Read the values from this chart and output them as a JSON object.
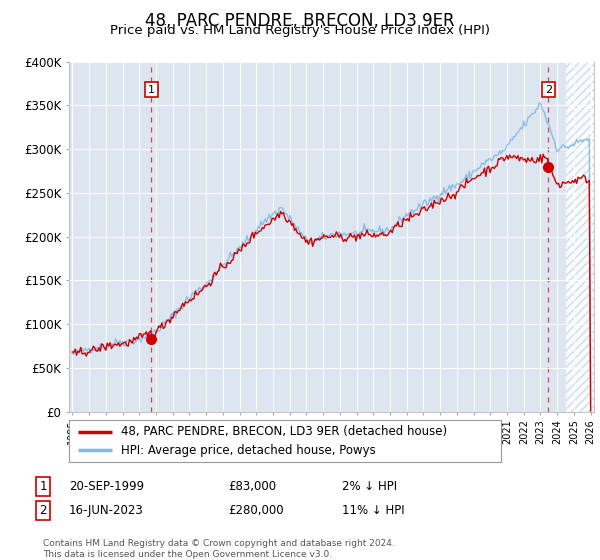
{
  "title": "48, PARC PENDRE, BRECON, LD3 9ER",
  "subtitle": "Price paid vs. HM Land Registry's House Price Index (HPI)",
  "ylim": [
    0,
    400000
  ],
  "yticks": [
    0,
    50000,
    100000,
    150000,
    200000,
    250000,
    300000,
    350000,
    400000
  ],
  "ytick_labels": [
    "£0",
    "£50K",
    "£100K",
    "£150K",
    "£200K",
    "£250K",
    "£300K",
    "£350K",
    "£400K"
  ],
  "background_color": "#ffffff",
  "plot_bg_color": "#dde6f0",
  "grid_color": "#ffffff",
  "title_fontsize": 12,
  "subtitle_fontsize": 9.5,
  "transactions": [
    {
      "date_num": 1999.72,
      "price": 83000,
      "label": "1"
    },
    {
      "date_num": 2023.46,
      "price": 280000,
      "label": "2"
    }
  ],
  "vline_color": "#cc0000",
  "vline_style": "--",
  "marker_color": "#cc0000",
  "legend_entries": [
    {
      "label": "48, PARC PENDRE, BRECON, LD3 9ER (detached house)",
      "color": "#cc0000",
      "lw": 2
    },
    {
      "label": "HPI: Average price, detached house, Powys",
      "color": "#80b8e8",
      "lw": 2
    }
  ],
  "annotation_rows": [
    {
      "label": "1",
      "date": "20-SEP-1999",
      "price": "£83,000",
      "change": "2% ↓ HPI"
    },
    {
      "label": "2",
      "date": "16-JUN-2023",
      "price": "£280,000",
      "change": "11% ↓ HPI"
    }
  ],
  "footer": "Contains HM Land Registry data © Crown copyright and database right 2024.\nThis data is licensed under the Open Government Licence v3.0.",
  "xmin": 1994.8,
  "xmax": 2026.2,
  "hpi_color": "#80b8e8",
  "prop_color": "#cc0000",
  "hatch_start": 2024.5,
  "hatch_color": "#c0d4e8"
}
